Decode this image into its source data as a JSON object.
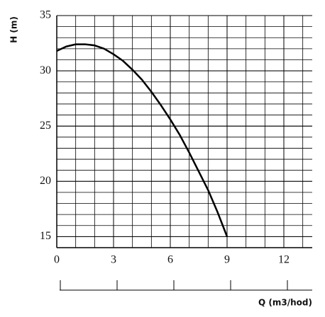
{
  "chart_data": {
    "type": "line",
    "x_label": "Q (m3/hod)",
    "y_label": "H (m)",
    "series": [
      {
        "name": "H",
        "color": "#000000",
        "x": [
          0,
          0.5,
          1,
          1.5,
          2,
          2.5,
          3,
          3.5,
          4,
          4.5,
          5,
          5.5,
          6,
          6.5,
          7,
          7.5,
          8,
          8.5,
          9
        ],
        "values": [
          31.8,
          32.2,
          32.4,
          32.4,
          32.3,
          32.0,
          31.5,
          30.9,
          30.1,
          29.2,
          28.1,
          26.9,
          25.6,
          24.2,
          22.6,
          20.9,
          19.2,
          17.2,
          15.0
        ]
      }
    ],
    "xlim": [
      0,
      13.5
    ],
    "xticks": [
      0,
      3,
      6,
      9,
      12
    ],
    "ylim": [
      14,
      35
    ],
    "yticks": [
      15,
      20,
      25,
      30,
      35
    ],
    "grid": true
  }
}
